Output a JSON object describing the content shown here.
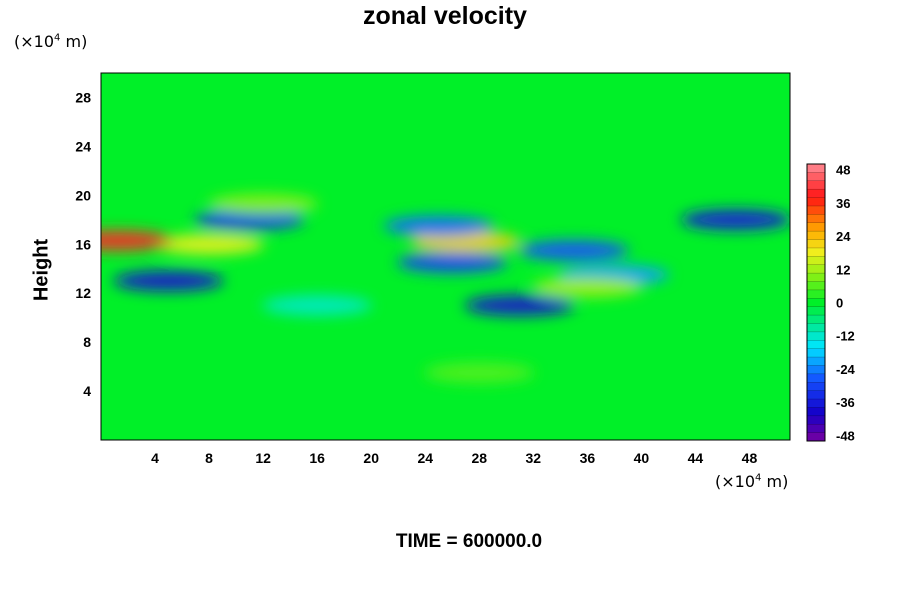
{
  "chart_data": {
    "type": "heatmap",
    "title": "zonal velocity",
    "ylabel": "Height",
    "xlabel": "",
    "x_unit": {
      "prefix": "(×10",
      "exp": "4",
      "suffix": " m)"
    },
    "y_unit": {
      "prefix": "(×10",
      "exp": "4",
      "suffix": " m)"
    },
    "footer": "TIME = 600000.0",
    "xlim": [
      0,
      51
    ],
    "ylim": [
      0,
      30
    ],
    "xticks": [
      "4",
      "8",
      "12",
      "16",
      "20",
      "24",
      "28",
      "32",
      "36",
      "40",
      "44",
      "48"
    ],
    "yticks": [
      "4",
      "8",
      "12",
      "16",
      "20",
      "24",
      "28"
    ],
    "colorbar": {
      "range": [
        -50,
        50
      ],
      "ticks": [
        "48",
        "36",
        "24",
        "12",
        "0",
        "-12",
        "-24",
        "-36",
        "-48"
      ],
      "levels": 33
    },
    "features": [
      {
        "x": 11,
        "y": 18.0,
        "value": -32
      },
      {
        "x": 5,
        "y": 13.0,
        "value": -38
      },
      {
        "x": 8,
        "y": 16.0,
        "value": 18
      },
      {
        "x": 1.2,
        "y": 16.3,
        "value": 40
      },
      {
        "x": 27,
        "y": 16.2,
        "value": 22
      },
      {
        "x": 26,
        "y": 14.5,
        "value": -30
      },
      {
        "x": 31,
        "y": 11.0,
        "value": -38
      },
      {
        "x": 35,
        "y": 15.5,
        "value": -28
      },
      {
        "x": 25,
        "y": 17.5,
        "value": -26
      },
      {
        "x": 47,
        "y": 18.0,
        "value": -36
      },
      {
        "x": 38,
        "y": 13.5,
        "value": -22
      },
      {
        "x": 12,
        "y": 19.3,
        "value": 10
      },
      {
        "x": 36,
        "y": 12.5,
        "value": 12
      },
      {
        "x": 16,
        "y": 11.0,
        "value": -12
      },
      {
        "x": 28,
        "y": 5.5,
        "value": 6
      }
    ]
  }
}
